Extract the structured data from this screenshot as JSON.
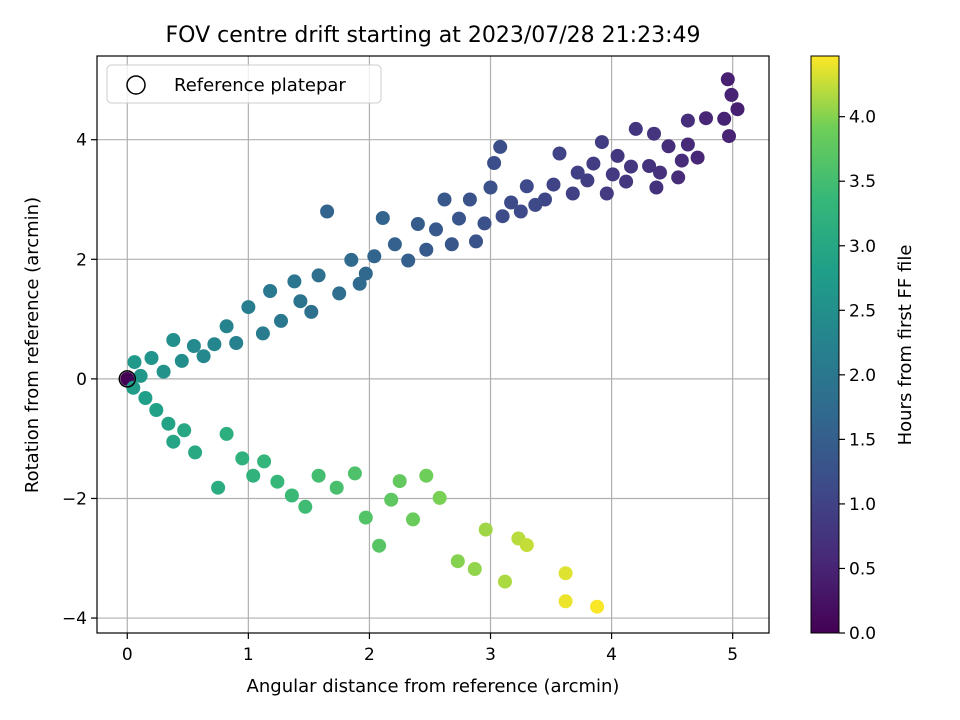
{
  "chart_data": {
    "type": "scatter",
    "title": "FOV centre drift starting at 2023/07/28 21:23:49",
    "xlabel": "Angular distance from reference (arcmin)",
    "ylabel": "Rotation from reference (arcmin)",
    "xlim": [
      -0.25,
      5.3
    ],
    "ylim": [
      -4.25,
      5.4
    ],
    "xticks": [
      0,
      1,
      2,
      3,
      4,
      5
    ],
    "yticks": [
      -4,
      -2,
      0,
      2,
      4
    ],
    "grid": true,
    "legend": {
      "placement": "top-left",
      "entries": [
        {
          "label": "Reference platepar",
          "marker": "open-circle"
        }
      ]
    },
    "reference_point": {
      "x": 0,
      "y": 0
    },
    "colorbar": {
      "label": "Hours from first FF file",
      "colormap": "viridis",
      "range": [
        0.0,
        4.47
      ],
      "ticks": [
        0.0,
        0.5,
        1.0,
        1.5,
        2.0,
        2.5,
        3.0,
        3.5,
        4.0
      ],
      "tick_labels": [
        "0.0",
        "0.5",
        "1.0",
        "1.5",
        "2.0",
        "2.5",
        "3.0",
        "3.5",
        "4.0"
      ]
    },
    "series": [
      {
        "values_columns": [
          "x",
          "y",
          "hours"
        ],
        "points": [
          [
            0.0,
            0.0,
            0.0
          ],
          [
            4.96,
            5.01,
            0.45
          ],
          [
            5.04,
            4.51,
            0.45
          ],
          [
            4.99,
            4.75,
            0.48
          ],
          [
            4.93,
            4.35,
            0.48
          ],
          [
            4.97,
            4.06,
            0.5
          ],
          [
            4.78,
            4.36,
            0.55
          ],
          [
            4.71,
            3.7,
            0.55
          ],
          [
            4.63,
            3.92,
            0.6
          ],
          [
            4.58,
            3.65,
            0.62
          ],
          [
            4.55,
            3.37,
            0.62
          ],
          [
            4.63,
            4.32,
            0.65
          ],
          [
            4.47,
            3.89,
            0.65
          ],
          [
            4.4,
            3.45,
            0.7
          ],
          [
            4.37,
            3.2,
            0.72
          ],
          [
            4.31,
            3.56,
            0.73
          ],
          [
            4.35,
            4.1,
            0.75
          ],
          [
            4.2,
            4.18,
            0.78
          ],
          [
            4.16,
            3.55,
            0.8
          ],
          [
            4.12,
            3.3,
            0.8
          ],
          [
            4.05,
            3.73,
            0.82
          ],
          [
            4.01,
            3.42,
            0.85
          ],
          [
            3.96,
            3.1,
            0.85
          ],
          [
            3.92,
            3.96,
            0.88
          ],
          [
            3.85,
            3.6,
            0.9
          ],
          [
            3.8,
            3.32,
            0.92
          ],
          [
            3.72,
            3.45,
            0.95
          ],
          [
            3.68,
            3.1,
            0.95
          ],
          [
            3.57,
            3.77,
            1.0
          ],
          [
            3.52,
            3.25,
            1.02
          ],
          [
            3.45,
            3.0,
            1.05
          ],
          [
            3.37,
            2.91,
            1.1
          ],
          [
            3.25,
            2.8,
            1.12
          ],
          [
            3.3,
            3.22,
            1.12
          ],
          [
            3.17,
            2.95,
            1.15
          ],
          [
            3.1,
            2.72,
            1.15
          ],
          [
            3.08,
            3.88,
            1.2
          ],
          [
            3.03,
            3.61,
            1.2
          ],
          [
            3.0,
            3.2,
            1.22
          ],
          [
            2.95,
            2.6,
            1.25
          ],
          [
            2.88,
            2.3,
            1.28
          ],
          [
            2.83,
            3.0,
            1.3
          ],
          [
            2.74,
            2.68,
            1.32
          ],
          [
            2.68,
            2.25,
            1.35
          ],
          [
            2.62,
            3.0,
            1.38
          ],
          [
            2.55,
            2.5,
            1.4
          ],
          [
            2.47,
            2.16,
            1.42
          ],
          [
            2.4,
            2.59,
            1.45
          ],
          [
            2.32,
            1.98,
            1.5
          ],
          [
            2.21,
            2.25,
            1.55
          ],
          [
            2.11,
            2.69,
            1.6
          ],
          [
            2.04,
            2.05,
            1.62
          ],
          [
            1.97,
            1.76,
            1.68
          ],
          [
            1.92,
            1.59,
            1.72
          ],
          [
            1.85,
            1.99,
            1.75
          ],
          [
            1.75,
            1.43,
            1.8
          ],
          [
            1.65,
            2.8,
            1.6
          ],
          [
            1.58,
            1.73,
            1.85
          ],
          [
            1.52,
            1.12,
            1.88
          ],
          [
            1.43,
            1.3,
            1.92
          ],
          [
            1.38,
            1.63,
            1.95
          ],
          [
            1.27,
            0.97,
            2.0
          ],
          [
            1.18,
            1.47,
            2.05
          ],
          [
            1.12,
            0.76,
            2.1
          ],
          [
            1.0,
            1.2,
            2.15
          ],
          [
            0.9,
            0.6,
            2.2
          ],
          [
            0.82,
            0.88,
            2.25
          ],
          [
            0.72,
            0.58,
            2.3
          ],
          [
            0.63,
            0.38,
            2.35
          ],
          [
            0.55,
            0.55,
            2.4
          ],
          [
            0.45,
            0.3,
            2.45
          ],
          [
            0.38,
            0.65,
            2.5
          ],
          [
            0.3,
            0.12,
            2.55
          ],
          [
            0.2,
            0.35,
            2.6
          ],
          [
            0.11,
            0.05,
            2.65
          ],
          [
            0.06,
            0.28,
            2.68
          ],
          [
            0.05,
            -0.15,
            2.75
          ],
          [
            0.15,
            -0.32,
            2.8
          ],
          [
            0.24,
            -0.52,
            2.85
          ],
          [
            0.34,
            -0.75,
            2.9
          ],
          [
            0.38,
            -1.05,
            2.95
          ],
          [
            0.47,
            -0.86,
            3.0
          ],
          [
            0.56,
            -1.23,
            3.05
          ],
          [
            0.75,
            -1.82,
            3.1
          ],
          [
            0.82,
            -0.92,
            3.15
          ],
          [
            0.95,
            -1.33,
            3.2
          ],
          [
            1.04,
            -1.62,
            3.25
          ],
          [
            1.13,
            -1.38,
            3.3
          ],
          [
            1.24,
            -1.72,
            3.35
          ],
          [
            1.36,
            -1.95,
            3.4
          ],
          [
            1.47,
            -2.14,
            3.45
          ],
          [
            1.58,
            -1.62,
            3.5
          ],
          [
            1.73,
            -1.82,
            3.55
          ],
          [
            1.88,
            -1.58,
            3.6
          ],
          [
            1.97,
            -2.32,
            3.65
          ],
          [
            2.08,
            -2.79,
            3.7
          ],
          [
            2.18,
            -2.02,
            3.75
          ],
          [
            2.25,
            -1.71,
            3.8
          ],
          [
            2.36,
            -2.35,
            3.85
          ],
          [
            2.47,
            -1.62,
            3.9
          ],
          [
            2.58,
            -1.99,
            3.95
          ],
          [
            2.73,
            -3.05,
            4.0
          ],
          [
            2.87,
            -3.18,
            4.05
          ],
          [
            2.96,
            -2.52,
            4.1
          ],
          [
            3.12,
            -3.39,
            4.15
          ],
          [
            3.23,
            -2.67,
            4.2
          ],
          [
            3.3,
            -2.78,
            4.25
          ],
          [
            3.62,
            -3.25,
            4.35
          ],
          [
            3.62,
            -3.72,
            4.4
          ],
          [
            3.88,
            -3.81,
            4.45
          ]
        ]
      }
    ]
  }
}
